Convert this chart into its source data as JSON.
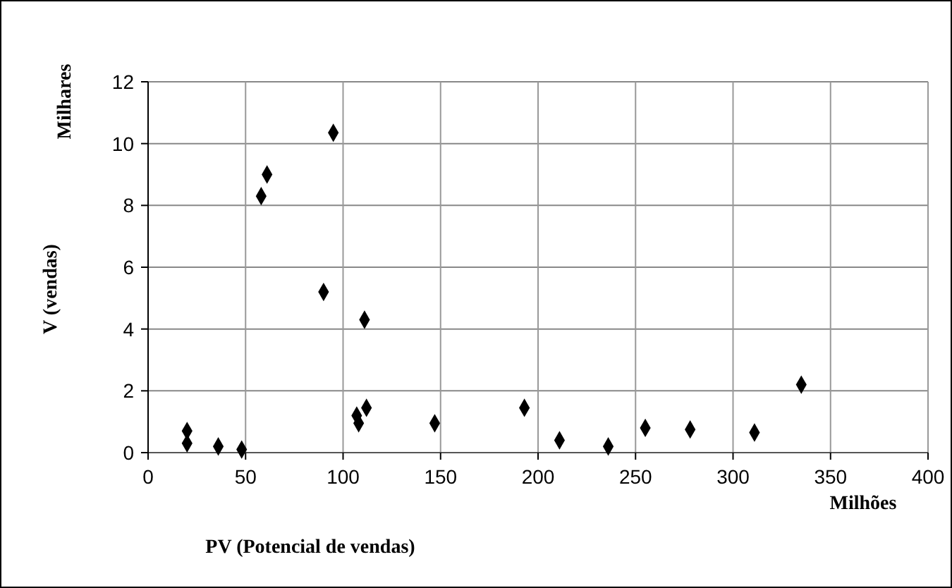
{
  "chart_data": {
    "type": "scatter",
    "xlabel": "PV (Potencial de vendas)",
    "ylabel": "V (vendas)",
    "annotations": [
      "Milhares",
      "Milhões"
    ],
    "x": [
      20,
      20,
      36,
      48,
      58,
      61,
      90,
      95,
      107,
      108,
      111,
      112,
      147,
      193,
      211,
      236,
      255,
      278,
      311,
      335
    ],
    "values": [
      0.3,
      0.7,
      0.2,
      0.1,
      8.3,
      9.0,
      5.2,
      10.35,
      1.2,
      0.95,
      4.3,
      1.45,
      0.95,
      1.45,
      0.4,
      0.2,
      0.8,
      0.75,
      0.65,
      2.2
    ],
    "color": "#000000",
    "marker": "diamond",
    "xlim": [
      0,
      400
    ],
    "ylim": [
      0,
      12
    ],
    "xticks": [
      0,
      50,
      100,
      150,
      200,
      250,
      300,
      350,
      400
    ],
    "yticks": [
      0,
      2,
      4,
      6,
      8,
      10,
      12
    ],
    "grid": true
  }
}
